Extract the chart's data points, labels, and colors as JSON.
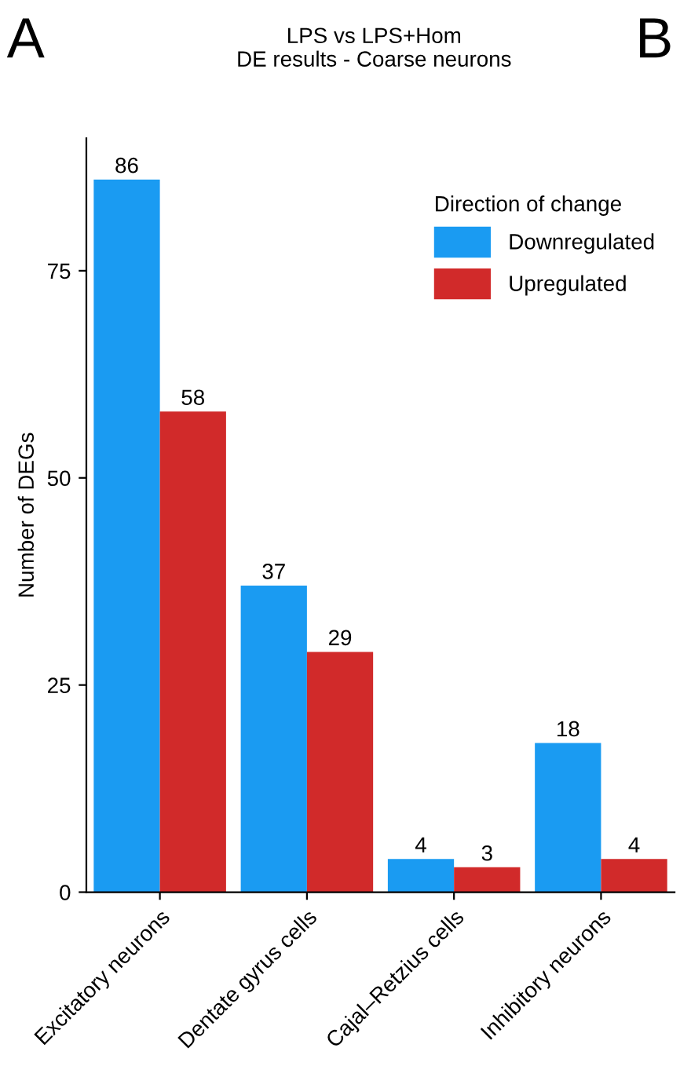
{
  "chart_data": {
    "type": "bar",
    "title": "LPS vs LPS+Hom\nDE results - Coarse neurons",
    "ylabel": "Number of DEGs",
    "annotations": [
      "A",
      "B"
    ],
    "categories": [
      "Excitatory neurons",
      "Dentate gyrus cells",
      "Cajal–Retzius cells",
      "Inhibitory neurons"
    ],
    "series": [
      {
        "name": "Downregulated",
        "color": "#1a9bf2",
        "values": [
          86,
          37,
          4,
          18
        ]
      },
      {
        "name": "Upregulated",
        "color": "#d12a2a",
        "values": [
          58,
          29,
          3,
          4
        ]
      }
    ],
    "legend_title": "Direction of change",
    "legend": "top right",
    "ylim": [
      0,
      91
    ],
    "yticks": [
      0,
      25,
      50,
      75
    ],
    "grid": false,
    "data_labels": true
  }
}
